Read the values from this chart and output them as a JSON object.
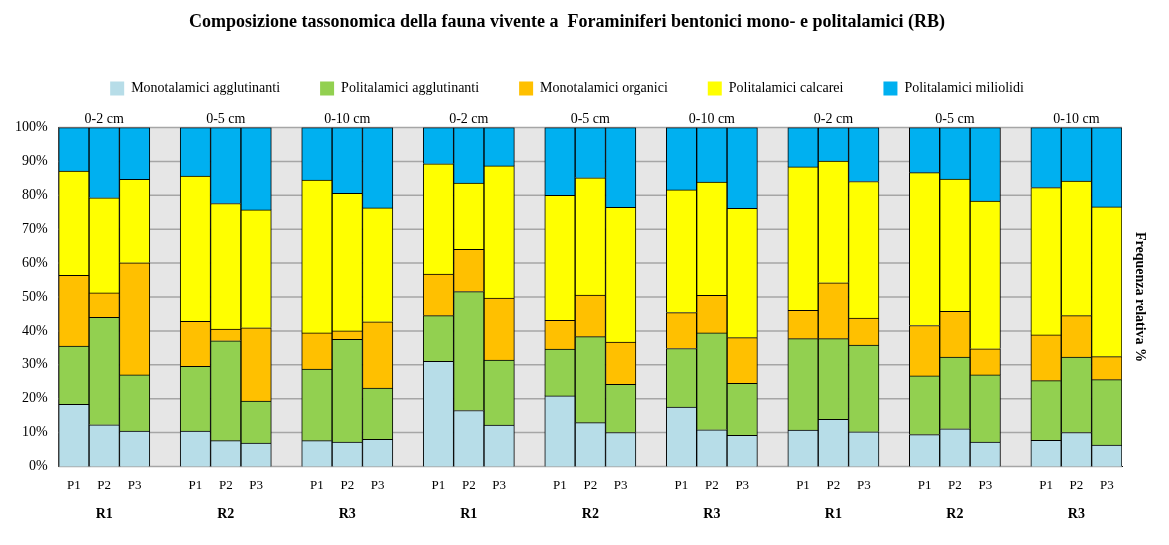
{
  "chart_data": {
    "type": "bar",
    "title": "Composizione tassonomica della fauna vivente a  Foraminiferi bentonici mono- e politalamici (RB)",
    "ylabel": "Frequenza relativa %",
    "categories": [
      "P1",
      "P2",
      "P3",
      "P1",
      "P2",
      "P3",
      "P1",
      "P2",
      "P3",
      "P1",
      "P2",
      "P3",
      "P1",
      "P2",
      "P3",
      "P1",
      "P2",
      "P3",
      "P1",
      "P2",
      "P3",
      "P1",
      "P2",
      "P3",
      "P1",
      "P2",
      "P3"
    ],
    "series": [
      {
        "name": "Monotalamici agglutinanti",
        "color": "#b7dde8",
        "values": [
          18.3,
          12.3,
          10.4,
          10.4,
          7.6,
          6.9,
          7.6,
          7.2,
          8.0,
          31.0,
          16.5,
          12.2,
          20.8,
          12.9,
          10.0,
          17.5,
          10.8,
          9.2,
          10.7,
          13.9,
          10.2,
          9.4,
          11.1,
          7.2,
          7.7,
          10.0,
          6.3
        ]
      },
      {
        "name": "Politalamici agglutinanti",
        "color": "#92d050",
        "values": [
          17.2,
          31.7,
          16.6,
          19.1,
          29.5,
          12.4,
          21.1,
          30.3,
          15.1,
          13.5,
          35.1,
          19.2,
          13.8,
          25.4,
          14.2,
          17.3,
          28.6,
          15.3,
          27.0,
          23.8,
          25.6,
          17.3,
          21.2,
          19.8,
          17.6,
          22.3,
          19.3
        ]
      },
      {
        "name": "Monotalamici organici",
        "color": "#ffc000",
        "values": [
          20.9,
          7.2,
          33.1,
          13.3,
          3.4,
          21.6,
          10.7,
          2.5,
          19.6,
          12.3,
          12.5,
          18.3,
          8.5,
          12.3,
          12.5,
          10.6,
          11.1,
          13.5,
          8.4,
          16.5,
          8.0,
          14.9,
          13.5,
          7.7,
          13.5,
          12.2,
          6.8
        ]
      },
      {
        "name": "Politalamici calcarei",
        "color": "#ffff00",
        "values": [
          30.8,
          28.1,
          24.6,
          42.9,
          37.1,
          34.8,
          45.1,
          40.6,
          33.6,
          32.5,
          19.5,
          39.0,
          36.9,
          34.6,
          39.8,
          36.2,
          33.4,
          38.2,
          42.3,
          35.9,
          40.3,
          45.1,
          39.0,
          43.6,
          43.5,
          39.7,
          44.2
        ]
      },
      {
        "name": "Politalamici miliolidi",
        "color": "#00b0f0",
        "values": [
          12.8,
          20.7,
          15.3,
          14.3,
          22.4,
          24.3,
          15.5,
          19.4,
          23.7,
          10.7,
          16.4,
          11.3,
          20.0,
          14.8,
          23.5,
          18.4,
          16.1,
          23.8,
          11.6,
          9.9,
          15.9,
          13.3,
          15.2,
          21.7,
          17.7,
          15.8,
          23.4
        ]
      }
    ],
    "stacked": true,
    "ylim": [
      0,
      100
    ],
    "yticks": [
      {
        "value": 0,
        "label": "0%"
      },
      {
        "value": 10,
        "label": "10%"
      },
      {
        "value": 20,
        "label": "20%"
      },
      {
        "value": 30,
        "label": "30%"
      },
      {
        "value": 40,
        "label": "40%"
      },
      {
        "value": 50,
        "label": "50%"
      },
      {
        "value": 60,
        "label": "60%"
      },
      {
        "value": 70,
        "label": "70%"
      },
      {
        "value": 80,
        "label": "80%"
      },
      {
        "value": 90,
        "label": "90%"
      },
      {
        "value": 100,
        "label": "100%"
      }
    ],
    "grid": "y",
    "legend": "top",
    "annotations": [
      "0-2 cm",
      "0-5 cm",
      "0-10 cm",
      "0-2 cm",
      "0-5 cm",
      "0-10 cm",
      "0-2 cm",
      "0-5 cm",
      "0-10 cm",
      "R1",
      "R2",
      "R3",
      "R1",
      "R2",
      "R3",
      "R1",
      "R2",
      "R3"
    ]
  }
}
